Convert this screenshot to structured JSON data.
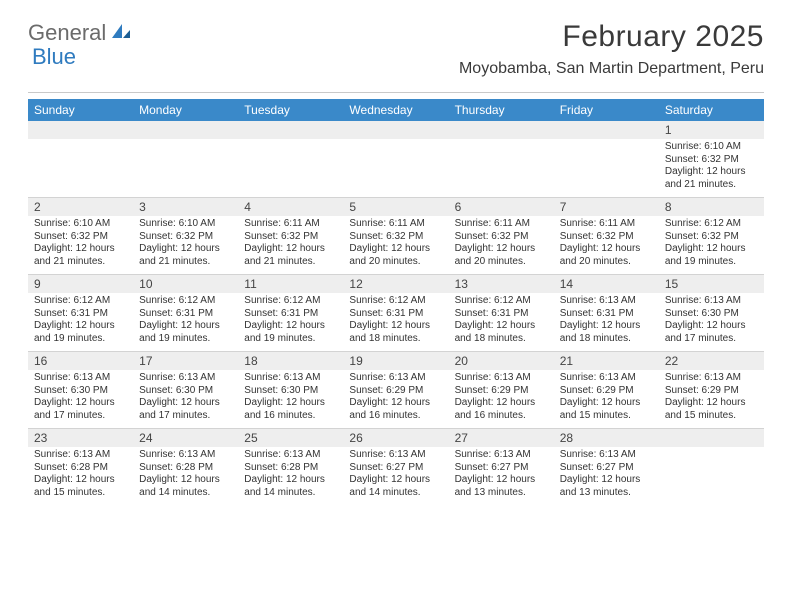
{
  "logo": {
    "text_general": "General",
    "text_blue": "Blue"
  },
  "title": "February 2025",
  "location": "Moyobamba, San Martin Department, Peru",
  "colors": {
    "header_bar": "#3a89c9",
    "daynum_bg": "#eeeeee",
    "divider": "#c9c9c9",
    "text": "#333333",
    "logo_gray": "#6b6b6b",
    "logo_blue": "#2f7bbf"
  },
  "weekdays": [
    "Sunday",
    "Monday",
    "Tuesday",
    "Wednesday",
    "Thursday",
    "Friday",
    "Saturday"
  ],
  "weeks": [
    [
      {
        "n": "",
        "sunrise": "",
        "sunset": "",
        "daylight1": "",
        "daylight2": ""
      },
      {
        "n": "",
        "sunrise": "",
        "sunset": "",
        "daylight1": "",
        "daylight2": ""
      },
      {
        "n": "",
        "sunrise": "",
        "sunset": "",
        "daylight1": "",
        "daylight2": ""
      },
      {
        "n": "",
        "sunrise": "",
        "sunset": "",
        "daylight1": "",
        "daylight2": ""
      },
      {
        "n": "",
        "sunrise": "",
        "sunset": "",
        "daylight1": "",
        "daylight2": ""
      },
      {
        "n": "",
        "sunrise": "",
        "sunset": "",
        "daylight1": "",
        "daylight2": ""
      },
      {
        "n": "1",
        "sunrise": "Sunrise: 6:10 AM",
        "sunset": "Sunset: 6:32 PM",
        "daylight1": "Daylight: 12 hours",
        "daylight2": "and 21 minutes."
      }
    ],
    [
      {
        "n": "2",
        "sunrise": "Sunrise: 6:10 AM",
        "sunset": "Sunset: 6:32 PM",
        "daylight1": "Daylight: 12 hours",
        "daylight2": "and 21 minutes."
      },
      {
        "n": "3",
        "sunrise": "Sunrise: 6:10 AM",
        "sunset": "Sunset: 6:32 PM",
        "daylight1": "Daylight: 12 hours",
        "daylight2": "and 21 minutes."
      },
      {
        "n": "4",
        "sunrise": "Sunrise: 6:11 AM",
        "sunset": "Sunset: 6:32 PM",
        "daylight1": "Daylight: 12 hours",
        "daylight2": "and 21 minutes."
      },
      {
        "n": "5",
        "sunrise": "Sunrise: 6:11 AM",
        "sunset": "Sunset: 6:32 PM",
        "daylight1": "Daylight: 12 hours",
        "daylight2": "and 20 minutes."
      },
      {
        "n": "6",
        "sunrise": "Sunrise: 6:11 AM",
        "sunset": "Sunset: 6:32 PM",
        "daylight1": "Daylight: 12 hours",
        "daylight2": "and 20 minutes."
      },
      {
        "n": "7",
        "sunrise": "Sunrise: 6:11 AM",
        "sunset": "Sunset: 6:32 PM",
        "daylight1": "Daylight: 12 hours",
        "daylight2": "and 20 minutes."
      },
      {
        "n": "8",
        "sunrise": "Sunrise: 6:12 AM",
        "sunset": "Sunset: 6:32 PM",
        "daylight1": "Daylight: 12 hours",
        "daylight2": "and 19 minutes."
      }
    ],
    [
      {
        "n": "9",
        "sunrise": "Sunrise: 6:12 AM",
        "sunset": "Sunset: 6:31 PM",
        "daylight1": "Daylight: 12 hours",
        "daylight2": "and 19 minutes."
      },
      {
        "n": "10",
        "sunrise": "Sunrise: 6:12 AM",
        "sunset": "Sunset: 6:31 PM",
        "daylight1": "Daylight: 12 hours",
        "daylight2": "and 19 minutes."
      },
      {
        "n": "11",
        "sunrise": "Sunrise: 6:12 AM",
        "sunset": "Sunset: 6:31 PM",
        "daylight1": "Daylight: 12 hours",
        "daylight2": "and 19 minutes."
      },
      {
        "n": "12",
        "sunrise": "Sunrise: 6:12 AM",
        "sunset": "Sunset: 6:31 PM",
        "daylight1": "Daylight: 12 hours",
        "daylight2": "and 18 minutes."
      },
      {
        "n": "13",
        "sunrise": "Sunrise: 6:12 AM",
        "sunset": "Sunset: 6:31 PM",
        "daylight1": "Daylight: 12 hours",
        "daylight2": "and 18 minutes."
      },
      {
        "n": "14",
        "sunrise": "Sunrise: 6:13 AM",
        "sunset": "Sunset: 6:31 PM",
        "daylight1": "Daylight: 12 hours",
        "daylight2": "and 18 minutes."
      },
      {
        "n": "15",
        "sunrise": "Sunrise: 6:13 AM",
        "sunset": "Sunset: 6:30 PM",
        "daylight1": "Daylight: 12 hours",
        "daylight2": "and 17 minutes."
      }
    ],
    [
      {
        "n": "16",
        "sunrise": "Sunrise: 6:13 AM",
        "sunset": "Sunset: 6:30 PM",
        "daylight1": "Daylight: 12 hours",
        "daylight2": "and 17 minutes."
      },
      {
        "n": "17",
        "sunrise": "Sunrise: 6:13 AM",
        "sunset": "Sunset: 6:30 PM",
        "daylight1": "Daylight: 12 hours",
        "daylight2": "and 17 minutes."
      },
      {
        "n": "18",
        "sunrise": "Sunrise: 6:13 AM",
        "sunset": "Sunset: 6:30 PM",
        "daylight1": "Daylight: 12 hours",
        "daylight2": "and 16 minutes."
      },
      {
        "n": "19",
        "sunrise": "Sunrise: 6:13 AM",
        "sunset": "Sunset: 6:29 PM",
        "daylight1": "Daylight: 12 hours",
        "daylight2": "and 16 minutes."
      },
      {
        "n": "20",
        "sunrise": "Sunrise: 6:13 AM",
        "sunset": "Sunset: 6:29 PM",
        "daylight1": "Daylight: 12 hours",
        "daylight2": "and 16 minutes."
      },
      {
        "n": "21",
        "sunrise": "Sunrise: 6:13 AM",
        "sunset": "Sunset: 6:29 PM",
        "daylight1": "Daylight: 12 hours",
        "daylight2": "and 15 minutes."
      },
      {
        "n": "22",
        "sunrise": "Sunrise: 6:13 AM",
        "sunset": "Sunset: 6:29 PM",
        "daylight1": "Daylight: 12 hours",
        "daylight2": "and 15 minutes."
      }
    ],
    [
      {
        "n": "23",
        "sunrise": "Sunrise: 6:13 AM",
        "sunset": "Sunset: 6:28 PM",
        "daylight1": "Daylight: 12 hours",
        "daylight2": "and 15 minutes."
      },
      {
        "n": "24",
        "sunrise": "Sunrise: 6:13 AM",
        "sunset": "Sunset: 6:28 PM",
        "daylight1": "Daylight: 12 hours",
        "daylight2": "and 14 minutes."
      },
      {
        "n": "25",
        "sunrise": "Sunrise: 6:13 AM",
        "sunset": "Sunset: 6:28 PM",
        "daylight1": "Daylight: 12 hours",
        "daylight2": "and 14 minutes."
      },
      {
        "n": "26",
        "sunrise": "Sunrise: 6:13 AM",
        "sunset": "Sunset: 6:27 PM",
        "daylight1": "Daylight: 12 hours",
        "daylight2": "and 14 minutes."
      },
      {
        "n": "27",
        "sunrise": "Sunrise: 6:13 AM",
        "sunset": "Sunset: 6:27 PM",
        "daylight1": "Daylight: 12 hours",
        "daylight2": "and 13 minutes."
      },
      {
        "n": "28",
        "sunrise": "Sunrise: 6:13 AM",
        "sunset": "Sunset: 6:27 PM",
        "daylight1": "Daylight: 12 hours",
        "daylight2": "and 13 minutes."
      },
      {
        "n": "",
        "sunrise": "",
        "sunset": "",
        "daylight1": "",
        "daylight2": ""
      }
    ]
  ]
}
